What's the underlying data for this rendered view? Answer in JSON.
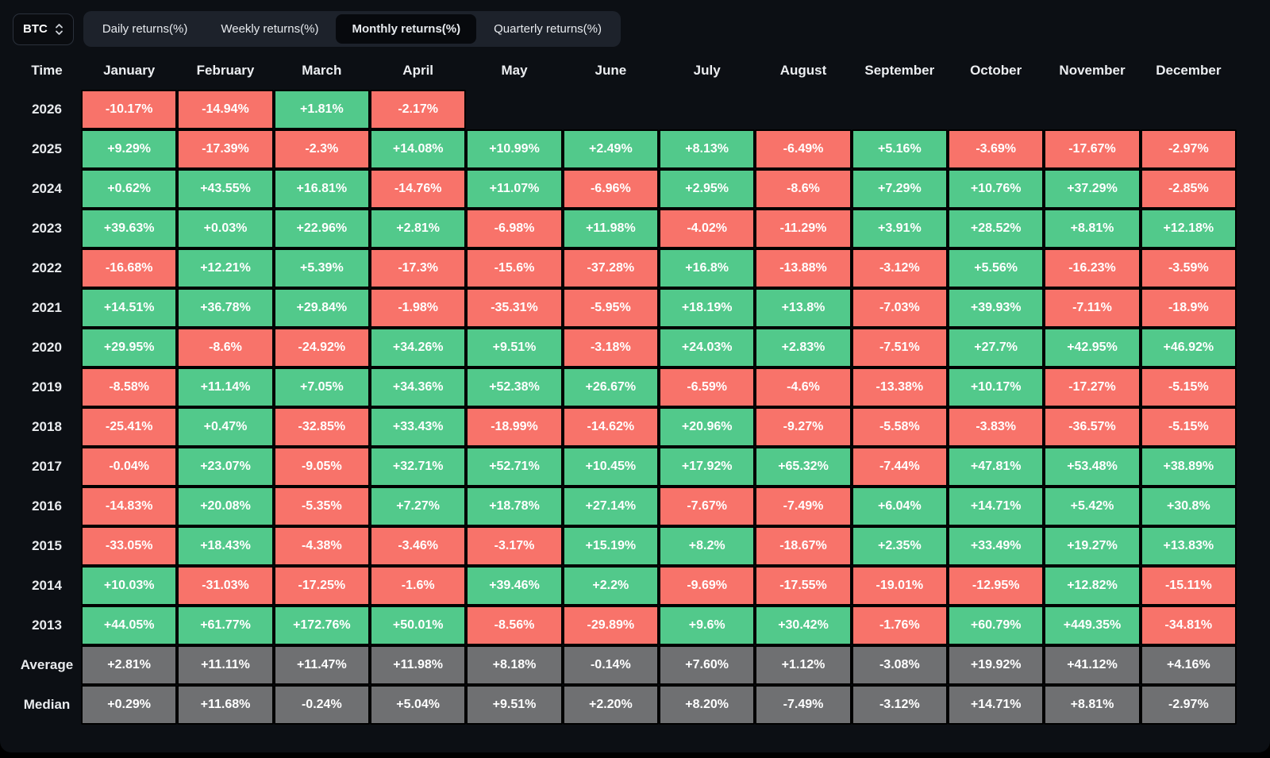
{
  "controls": {
    "symbol": "BTC",
    "symbol_selector_icon": "up-down-chevrons",
    "tabs": [
      {
        "label": "Daily returns(%)",
        "active": false
      },
      {
        "label": "Weekly returns(%)",
        "active": false
      },
      {
        "label": "Monthly returns(%)",
        "active": true
      },
      {
        "label": "Quarterly returns(%)",
        "active": false
      }
    ]
  },
  "colors": {
    "positive": "#52c98b",
    "negative": "#f8736a",
    "summary": "#6f7072",
    "background": "#0c0f14",
    "tabbar": "#1d222b",
    "active_tab": "#07090d"
  },
  "chart_data": {
    "type": "table",
    "title": "BTC Monthly returns(%)",
    "columns": [
      "Time",
      "January",
      "February",
      "March",
      "April",
      "May",
      "June",
      "July",
      "August",
      "September",
      "October",
      "November",
      "December"
    ],
    "rows": [
      {
        "label": "2026",
        "summary": false,
        "values": [
          "-10.17%",
          "-14.94%",
          "+1.81%",
          "-2.17%"
        ]
      },
      {
        "label": "2025",
        "summary": false,
        "values": [
          "+9.29%",
          "-17.39%",
          "-2.3%",
          "+14.08%",
          "+10.99%",
          "+2.49%",
          "+8.13%",
          "-6.49%",
          "+5.16%",
          "-3.69%",
          "-17.67%",
          "-2.97%"
        ]
      },
      {
        "label": "2024",
        "summary": false,
        "values": [
          "+0.62%",
          "+43.55%",
          "+16.81%",
          "-14.76%",
          "+11.07%",
          "-6.96%",
          "+2.95%",
          "-8.6%",
          "+7.29%",
          "+10.76%",
          "+37.29%",
          "-2.85%"
        ]
      },
      {
        "label": "2023",
        "summary": false,
        "values": [
          "+39.63%",
          "+0.03%",
          "+22.96%",
          "+2.81%",
          "-6.98%",
          "+11.98%",
          "-4.02%",
          "-11.29%",
          "+3.91%",
          "+28.52%",
          "+8.81%",
          "+12.18%"
        ]
      },
      {
        "label": "2022",
        "summary": false,
        "values": [
          "-16.68%",
          "+12.21%",
          "+5.39%",
          "-17.3%",
          "-15.6%",
          "-37.28%",
          "+16.8%",
          "-13.88%",
          "-3.12%",
          "+5.56%",
          "-16.23%",
          "-3.59%"
        ]
      },
      {
        "label": "2021",
        "summary": false,
        "values": [
          "+14.51%",
          "+36.78%",
          "+29.84%",
          "-1.98%",
          "-35.31%",
          "-5.95%",
          "+18.19%",
          "+13.8%",
          "-7.03%",
          "+39.93%",
          "-7.11%",
          "-18.9%"
        ]
      },
      {
        "label": "2020",
        "summary": false,
        "values": [
          "+29.95%",
          "-8.6%",
          "-24.92%",
          "+34.26%",
          "+9.51%",
          "-3.18%",
          "+24.03%",
          "+2.83%",
          "-7.51%",
          "+27.7%",
          "+42.95%",
          "+46.92%"
        ]
      },
      {
        "label": "2019",
        "summary": false,
        "values": [
          "-8.58%",
          "+11.14%",
          "+7.05%",
          "+34.36%",
          "+52.38%",
          "+26.67%",
          "-6.59%",
          "-4.6%",
          "-13.38%",
          "+10.17%",
          "-17.27%",
          "-5.15%"
        ]
      },
      {
        "label": "2018",
        "summary": false,
        "values": [
          "-25.41%",
          "+0.47%",
          "-32.85%",
          "+33.43%",
          "-18.99%",
          "-14.62%",
          "+20.96%",
          "-9.27%",
          "-5.58%",
          "-3.83%",
          "-36.57%",
          "-5.15%"
        ]
      },
      {
        "label": "2017",
        "summary": false,
        "values": [
          "-0.04%",
          "+23.07%",
          "-9.05%",
          "+32.71%",
          "+52.71%",
          "+10.45%",
          "+17.92%",
          "+65.32%",
          "-7.44%",
          "+47.81%",
          "+53.48%",
          "+38.89%"
        ]
      },
      {
        "label": "2016",
        "summary": false,
        "values": [
          "-14.83%",
          "+20.08%",
          "-5.35%",
          "+7.27%",
          "+18.78%",
          "+27.14%",
          "-7.67%",
          "-7.49%",
          "+6.04%",
          "+14.71%",
          "+5.42%",
          "+30.8%"
        ]
      },
      {
        "label": "2015",
        "summary": false,
        "values": [
          "-33.05%",
          "+18.43%",
          "-4.38%",
          "-3.46%",
          "-3.17%",
          "+15.19%",
          "+8.2%",
          "-18.67%",
          "+2.35%",
          "+33.49%",
          "+19.27%",
          "+13.83%"
        ]
      },
      {
        "label": "2014",
        "summary": false,
        "values": [
          "+10.03%",
          "-31.03%",
          "-17.25%",
          "-1.6%",
          "+39.46%",
          "+2.2%",
          "-9.69%",
          "-17.55%",
          "-19.01%",
          "-12.95%",
          "+12.82%",
          "-15.11%"
        ]
      },
      {
        "label": "2013",
        "summary": false,
        "values": [
          "+44.05%",
          "+61.77%",
          "+172.76%",
          "+50.01%",
          "-8.56%",
          "-29.89%",
          "+9.6%",
          "+30.42%",
          "-1.76%",
          "+60.79%",
          "+449.35%",
          "-34.81%"
        ]
      },
      {
        "label": "Average",
        "summary": true,
        "values": [
          "+2.81%",
          "+11.11%",
          "+11.47%",
          "+11.98%",
          "+8.18%",
          "-0.14%",
          "+7.60%",
          "+1.12%",
          "-3.08%",
          "+19.92%",
          "+41.12%",
          "+4.16%"
        ]
      },
      {
        "label": "Median",
        "summary": true,
        "values": [
          "+0.29%",
          "+11.68%",
          "-0.24%",
          "+5.04%",
          "+9.51%",
          "+2.20%",
          "+8.20%",
          "-7.49%",
          "-3.12%",
          "+14.71%",
          "+8.81%",
          "-2.97%"
        ]
      }
    ]
  }
}
